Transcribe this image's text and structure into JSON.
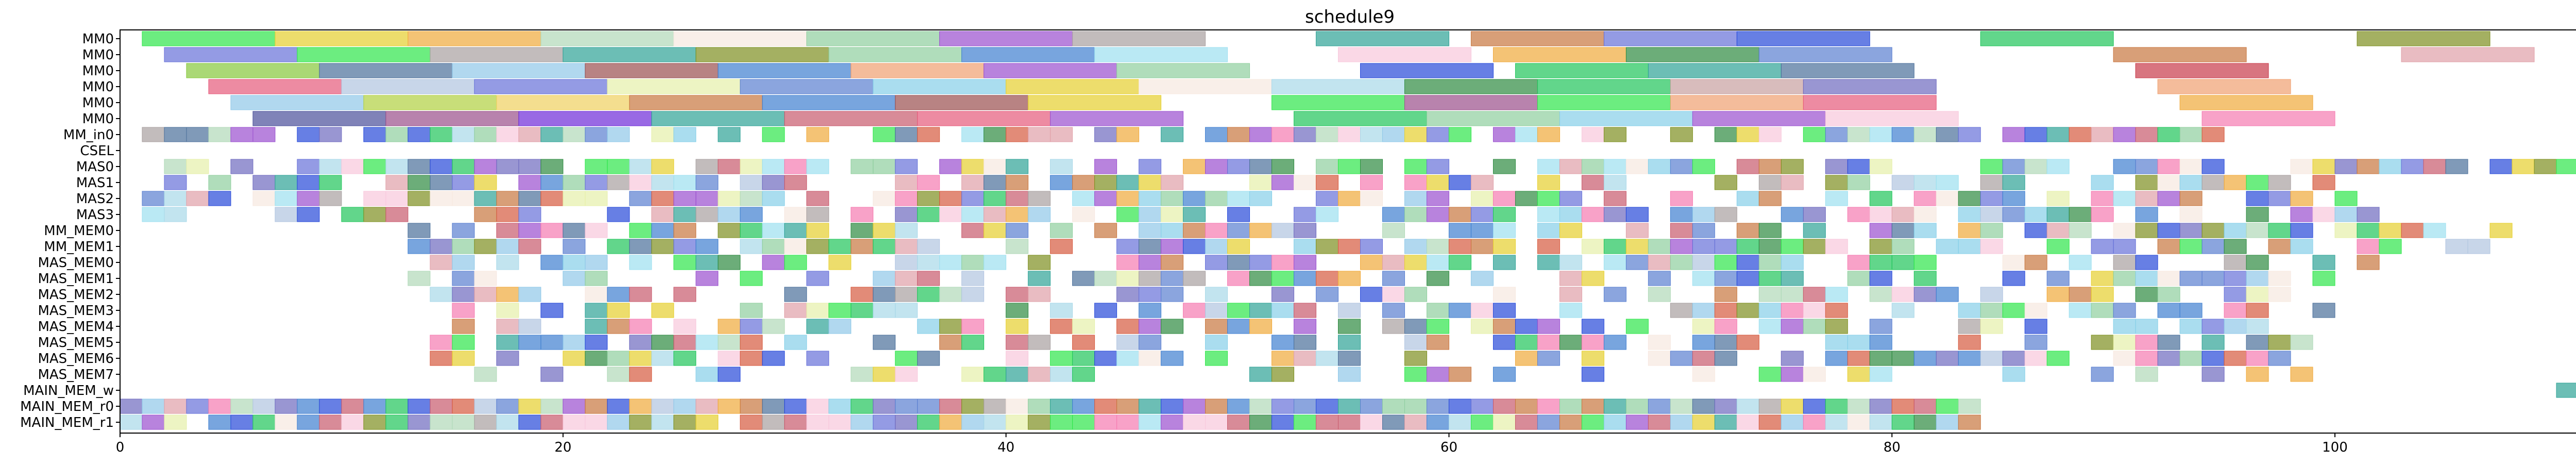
{
  "chart_data": {
    "type": "gantt",
    "title": "schedule9",
    "xlabel": "",
    "ylabel": "",
    "xlim": [
      0,
      111
    ],
    "xticks": [
      0,
      20,
      40,
      60,
      80,
      100
    ],
    "grid": false,
    "legend": "none",
    "rows": [
      "MM0",
      "MM0",
      "MM0",
      "MM0",
      "MM0",
      "MM0",
      "MM_in0",
      "CSEL",
      "MAS0",
      "MAS1",
      "MAS2",
      "MAS3",
      "MM_MEM0",
      "MM_MEM1",
      "MAS_MEM0",
      "MAS_MEM1",
      "MAS_MEM2",
      "MAS_MEM3",
      "MAS_MEM4",
      "MAS_MEM5",
      "MAS_MEM6",
      "MAS_MEM7",
      "MAIN_MEM_w",
      "MAIN_MEM_r0",
      "MAIN_MEM_r1"
    ],
    "palette": [
      "#2ee64a",
      "#e6cf2e",
      "#f0a93a",
      "#b0d9b8",
      "#f7e8e0",
      "#8fce9e",
      "#9a4fcf",
      "#a8a0a0",
      "#2ea296",
      "#c8763e",
      "#6670d8",
      "#2649d9",
      "#1fc45a",
      "#7d8f1f",
      "#3f7fd0",
      "#2e8a40",
      "#d65a3e",
      "#f57ab0",
      "#86cfe8",
      "#e6efaa",
      "#5a7fd0",
      "#a8d8e8",
      "#e0a0a8",
      "#b0c4e0",
      "#c85a6c",
      "#90c8e8",
      "#4a6f9a",
      "#f8c8dc",
      "#9de0f0",
      "#6e6abf"
    ],
    "tasks": [
      {
        "row": 0,
        "start": 1,
        "end": 7,
        "color": "#2ee64a"
      },
      {
        "row": 0,
        "start": 7,
        "end": 13,
        "color": "#e6cf2e"
      },
      {
        "row": 0,
        "start": 13,
        "end": 19,
        "color": "#f0a93a"
      },
      {
        "row": 0,
        "start": 19,
        "end": 25,
        "color": "#b0d9b8"
      },
      {
        "row": 0,
        "start": 25,
        "end": 31,
        "color": "#f7e8e0"
      },
      {
        "row": 0,
        "start": 31,
        "end": 37,
        "color": "#8fce9e"
      },
      {
        "row": 0,
        "start": 37,
        "end": 43,
        "color": "#9a4fcf"
      },
      {
        "row": 0,
        "start": 43,
        "end": 49,
        "color": "#a8a0a0"
      },
      {
        "row": 0,
        "start": 54,
        "end": 60,
        "color": "#2ea296"
      },
      {
        "row": 0,
        "start": 61,
        "end": 67,
        "color": "#c8763e"
      },
      {
        "row": 0,
        "start": 67,
        "end": 73,
        "color": "#6670d8"
      },
      {
        "row": 0,
        "start": 73,
        "end": 79,
        "color": "#2649d9"
      },
      {
        "row": 0,
        "start": 84,
        "end": 90,
        "color": "#1fc45a"
      },
      {
        "row": 0,
        "start": 101,
        "end": 107,
        "color": "#7d8f1f"
      },
      {
        "row": 1,
        "start": 2,
        "end": 8,
        "color": "#6670d8"
      },
      {
        "row": 1,
        "start": 8,
        "end": 14,
        "color": "#2ee64a"
      },
      {
        "row": 1,
        "start": 14,
        "end": 20,
        "color": "#a8a0a0"
      },
      {
        "row": 1,
        "start": 20,
        "end": 26,
        "color": "#2ea296"
      },
      {
        "row": 1,
        "start": 26,
        "end": 32,
        "color": "#7d8f1f"
      },
      {
        "row": 1,
        "start": 32,
        "end": 38,
        "color": "#8fce9e"
      },
      {
        "row": 1,
        "start": 38,
        "end": 44,
        "color": "#3f7fd0"
      },
      {
        "row": 1,
        "start": 44,
        "end": 50,
        "color": "#9de0f0"
      },
      {
        "row": 1,
        "start": 55,
        "end": 61,
        "color": "#f8c8dc"
      },
      {
        "row": 1,
        "start": 62,
        "end": 68,
        "color": "#f0a93a"
      },
      {
        "row": 1,
        "start": 68,
        "end": 74,
        "color": "#2e8a40"
      },
      {
        "row": 1,
        "start": 74,
        "end": 80,
        "color": "#5a7fd0"
      },
      {
        "row": 1,
        "start": 90,
        "end": 96,
        "color": "#c8763e"
      },
      {
        "row": 1,
        "start": 103,
        "end": 109,
        "color": "#e0a0a8"
      },
      {
        "row": 2,
        "start": 3,
        "end": 9,
        "color": "#86c83a"
      },
      {
        "row": 2,
        "start": 9,
        "end": 15,
        "color": "#4a6f9a"
      },
      {
        "row": 2,
        "start": 15,
        "end": 21,
        "color": "#90c8e8"
      },
      {
        "row": 2,
        "start": 21,
        "end": 27,
        "color": "#9a4f4f"
      },
      {
        "row": 2,
        "start": 27,
        "end": 33,
        "color": "#3f7fd0"
      },
      {
        "row": 2,
        "start": 33,
        "end": 39,
        "color": "#f0a070"
      },
      {
        "row": 2,
        "start": 39,
        "end": 45,
        "color": "#9a4fcf"
      },
      {
        "row": 2,
        "start": 45,
        "end": 51,
        "color": "#8fce9e"
      },
      {
        "row": 2,
        "start": 56,
        "end": 62,
        "color": "#2649d9"
      },
      {
        "row": 2,
        "start": 63,
        "end": 69,
        "color": "#1fc45a"
      },
      {
        "row": 2,
        "start": 69,
        "end": 75,
        "color": "#2ea296"
      },
      {
        "row": 2,
        "start": 75,
        "end": 81,
        "color": "#4a6f9a"
      },
      {
        "row": 2,
        "start": 91,
        "end": 97,
        "color": "#c83a4a"
      },
      {
        "row": 3,
        "start": 4,
        "end": 10,
        "color": "#e65a7a"
      },
      {
        "row": 3,
        "start": 10,
        "end": 16,
        "color": "#b0c4e0"
      },
      {
        "row": 3,
        "start": 16,
        "end": 22,
        "color": "#6670d8"
      },
      {
        "row": 3,
        "start": 22,
        "end": 28,
        "color": "#e6efaa"
      },
      {
        "row": 3,
        "start": 28,
        "end": 34,
        "color": "#5a7fd0"
      },
      {
        "row": 3,
        "start": 34,
        "end": 40,
        "color": "#86cfe8"
      },
      {
        "row": 3,
        "start": 40,
        "end": 46,
        "color": "#e6cf2e"
      },
      {
        "row": 3,
        "start": 46,
        "end": 52,
        "color": "#f7e8e0"
      },
      {
        "row": 3,
        "start": 52,
        "end": 58,
        "color": "#a8d8e8"
      },
      {
        "row": 3,
        "start": 58,
        "end": 64,
        "color": "#2e8a40"
      },
      {
        "row": 3,
        "start": 64,
        "end": 70,
        "color": "#1fc45a"
      },
      {
        "row": 3,
        "start": 70,
        "end": 76,
        "color": "#c8a0a0"
      },
      {
        "row": 3,
        "start": 76,
        "end": 82,
        "color": "#6e6abf"
      },
      {
        "row": 3,
        "start": 92,
        "end": 98,
        "color": "#f0a070"
      },
      {
        "row": 4,
        "start": 5,
        "end": 11,
        "color": "#90c8e8"
      },
      {
        "row": 4,
        "start": 11,
        "end": 17,
        "color": "#b0d040"
      },
      {
        "row": 4,
        "start": 17,
        "end": 23,
        "color": "#f0d060"
      },
      {
        "row": 4,
        "start": 23,
        "end": 29,
        "color": "#c8763e"
      },
      {
        "row": 4,
        "start": 29,
        "end": 35,
        "color": "#3f7fd0"
      },
      {
        "row": 4,
        "start": 35,
        "end": 41,
        "color": "#9a4f4f"
      },
      {
        "row": 4,
        "start": 41,
        "end": 47,
        "color": "#e6cf2e"
      },
      {
        "row": 4,
        "start": 52,
        "end": 58,
        "color": "#2ee64a"
      },
      {
        "row": 4,
        "start": 58,
        "end": 64,
        "color": "#9a4f8a"
      },
      {
        "row": 4,
        "start": 64,
        "end": 70,
        "color": "#2ee64a"
      },
      {
        "row": 4,
        "start": 70,
        "end": 76,
        "color": "#f0a070"
      },
      {
        "row": 4,
        "start": 76,
        "end": 82,
        "color": "#e65a7a"
      },
      {
        "row": 4,
        "start": 93,
        "end": 99,
        "color": "#f0a93a"
      },
      {
        "row": 5,
        "start": 6,
        "end": 12,
        "color": "#4a4f9a"
      },
      {
        "row": 5,
        "start": 12,
        "end": 18,
        "color": "#9a4f8a"
      },
      {
        "row": 5,
        "start": 18,
        "end": 24,
        "color": "#6e2ad8"
      },
      {
        "row": 5,
        "start": 24,
        "end": 30,
        "color": "#2ea296"
      },
      {
        "row": 5,
        "start": 30,
        "end": 36,
        "color": "#c85a6c"
      },
      {
        "row": 5,
        "start": 36,
        "end": 42,
        "color": "#e65a7a"
      },
      {
        "row": 5,
        "start": 42,
        "end": 48,
        "color": "#9a4fcf"
      },
      {
        "row": 5,
        "start": 53,
        "end": 59,
        "color": "#1fc45a"
      },
      {
        "row": 5,
        "start": 59,
        "end": 65,
        "color": "#8fce9e"
      },
      {
        "row": 5,
        "start": 65,
        "end": 71,
        "color": "#86cfe8"
      },
      {
        "row": 5,
        "start": 71,
        "end": 77,
        "color": "#9a4fcf"
      },
      {
        "row": 5,
        "start": 77,
        "end": 83,
        "color": "#f8c8dc"
      },
      {
        "row": 5,
        "start": 94,
        "end": 100,
        "color": "#f57ab0"
      }
    ]
  }
}
